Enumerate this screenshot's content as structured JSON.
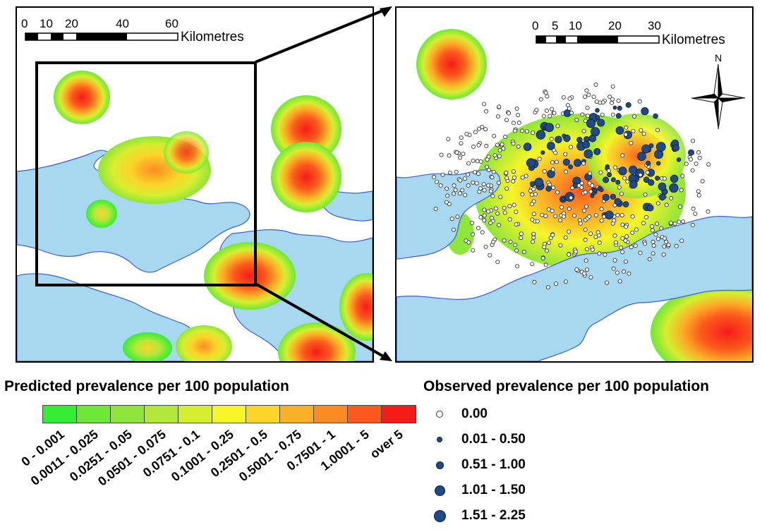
{
  "colors": {
    "water": "#a8d8ef",
    "water_edge": "#3a5fd0",
    "observed_fill": "#1e4a8a",
    "zero_fill": "#ffffff"
  },
  "left_map": {
    "scale_bar_ticks": [
      "0",
      "10",
      "20",
      "40",
      "60"
    ],
    "scale_bar_unit": "Kilometres"
  },
  "right_map": {
    "scale_bar_ticks": [
      "0",
      "5",
      "10",
      "20",
      "30"
    ],
    "scale_bar_unit": "Kilometres",
    "north_arrow_label": "N"
  },
  "predicted_legend": {
    "title": "Predicted prevalence per 100 population",
    "classes": [
      {
        "label": "0 - 0.001",
        "color": "#33ee33"
      },
      {
        "label": "0.0011 - 0.025",
        "color": "#6ee838"
      },
      {
        "label": "0.0251 - 0.05",
        "color": "#8fe53a"
      },
      {
        "label": "0.0501 - 0.075",
        "color": "#b2e83a"
      },
      {
        "label": "0.0751 - 0.1",
        "color": "#d6ee30"
      },
      {
        "label": "0.1001 - 0.25",
        "color": "#f5f52a"
      },
      {
        "label": "0.2501 - 0.5",
        "color": "#fbd52a"
      },
      {
        "label": "0.5001 - 0.75",
        "color": "#fbb027"
      },
      {
        "label": "0.7501 - 1",
        "color": "#fb8c22"
      },
      {
        "label": "1.0001 - 5",
        "color": "#fb5a1c"
      },
      {
        "label": "over 5",
        "color": "#f51c18"
      }
    ]
  },
  "observed_legend": {
    "title": "Observed prevalence per 100 population",
    "classes": [
      {
        "label": "0.00",
        "symbol": "hollow-circle"
      },
      {
        "label": "0.01 - 0.50",
        "symbol": "filled-circle-xs"
      },
      {
        "label": "0.51 - 1.00",
        "symbol": "filled-circle-s"
      },
      {
        "label": "1.01 - 1.50",
        "symbol": "filled-circle-m"
      },
      {
        "label": "1.51 - 2.25",
        "symbol": "filled-circle-l"
      }
    ]
  }
}
